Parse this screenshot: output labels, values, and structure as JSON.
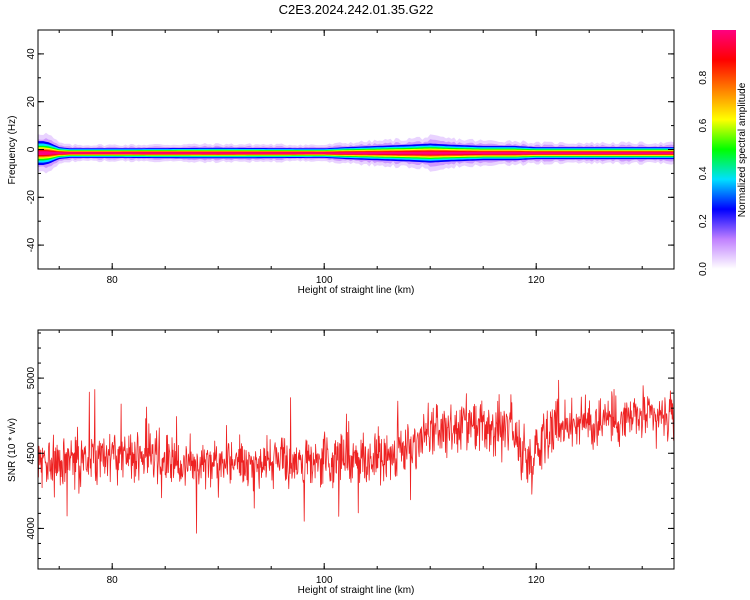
{
  "title": "C2E3.2024.242.01.35.G22",
  "colors": {
    "snr_line": "#ee2222",
    "axes": "#000000"
  },
  "chart_data": [
    {
      "type": "heatmap",
      "xlabel": "Height of straight line (km)",
      "ylabel": "Frequency (Hz)",
      "xlim": [
        73,
        133
      ],
      "ylim": [
        -50,
        50
      ],
      "x_ticks": [
        80,
        100,
        120
      ],
      "x_tick_labels": [
        "80",
        "100",
        "120"
      ],
      "y_ticks": [
        40,
        20,
        0,
        -20,
        -40
      ],
      "y_tick_labels": [
        "40",
        "20",
        "0",
        "-20",
        "-40"
      ],
      "band_center_hz": -1.5,
      "colorbar": {
        "label": "Normalized spectral amplitude",
        "range": [
          0,
          1
        ],
        "ticks": [
          0,
          0.2,
          0.4,
          0.6,
          0.8
        ],
        "tick_labels": [
          "0.0",
          "0.2",
          "0.4",
          "0.6",
          "0.8"
        ],
        "colormap": [
          "#ffffff",
          "#c080ff",
          "#0000ff",
          "#00e0ff",
          "#00ff00",
          "#ffff00",
          "#ff8000",
          "#ff0000",
          "#ff0080"
        ]
      },
      "intensity_profile": {
        "height_km": [
          73.5,
          74,
          74.5,
          75,
          76,
          80,
          90,
          100,
          102,
          105,
          108,
          110,
          112,
          115,
          118,
          120,
          125,
          130,
          133
        ],
        "width_hz": [
          5,
          4.5,
          3.5,
          2.5,
          2,
          2,
          2.2,
          2,
          2.5,
          3,
          3.5,
          4,
          3.5,
          3,
          3,
          2.5,
          2.5,
          2.5,
          2.5
        ]
      }
    },
    {
      "type": "line",
      "xlabel": "Height of straight line (km)",
      "ylabel": "SNR (10 * v/v)",
      "xlim": [
        73,
        133
      ],
      "ylim": [
        3730,
        5320
      ],
      "x_ticks": [
        80,
        100,
        120
      ],
      "x_tick_labels": [
        "80",
        "100",
        "120"
      ],
      "y_ticks": [
        4000,
        4500,
        5000
      ],
      "y_tick_labels": [
        "4000",
        "4500",
        "5000"
      ],
      "series": [
        {
          "color": "#ee2222",
          "x": [
            73,
            76,
            80,
            84,
            86,
            90,
            95,
            99,
            102,
            106,
            108,
            110,
            112,
            114,
            116,
            117.5,
            118.5,
            119.5,
            121,
            124,
            127,
            130,
            133
          ],
          "mean": [
            4420,
            4460,
            4480,
            4470,
            4420,
            4460,
            4440,
            4430,
            4460,
            4480,
            4530,
            4650,
            4650,
            4660,
            4640,
            4700,
            4500,
            4440,
            4680,
            4700,
            4720,
            4740,
            4730
          ],
          "amplitude": [
            170,
            180,
            180,
            170,
            180,
            170,
            170,
            170,
            180,
            180,
            180,
            200,
            180,
            190,
            180,
            250,
            220,
            200,
            190,
            180,
            180,
            170,
            180
          ]
        }
      ]
    }
  ]
}
